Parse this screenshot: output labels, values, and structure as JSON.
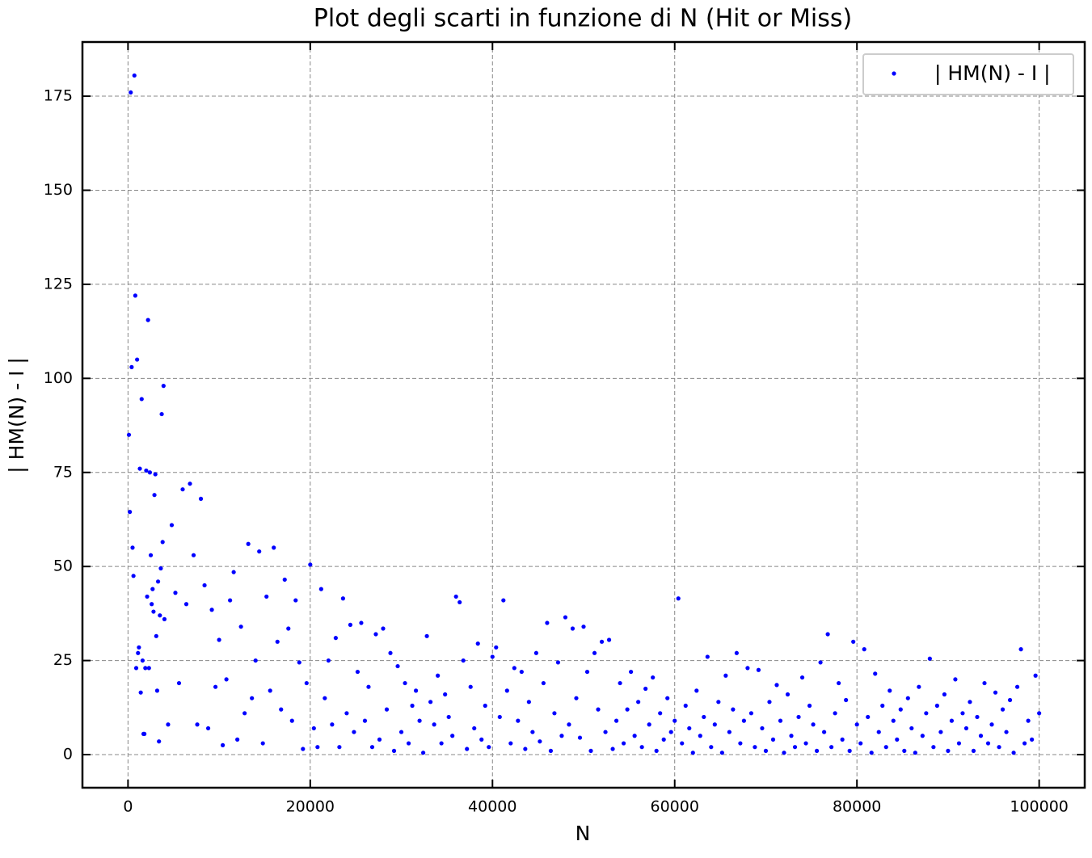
{
  "chart_data": {
    "type": "scatter",
    "title": "Plot degli scarti in funzione di N (Hit or Miss)",
    "xlabel": "N",
    "ylabel": "| HM(N) - I |",
    "xlim": [
      -5000,
      105000
    ],
    "ylim": [
      -8.8,
      189.4
    ],
    "xticks": [
      0,
      20000,
      40000,
      60000,
      80000,
      100000
    ],
    "yticks": [
      0,
      25,
      50,
      75,
      100,
      125,
      150,
      175
    ],
    "grid": true,
    "legend": "upper right",
    "series": [
      {
        "name": "| HM(N) - I |",
        "color": "#0000ff",
        "x": [
          100,
          200,
          300,
          400,
          500,
          600,
          700,
          800,
          900,
          1000,
          1100,
          1200,
          1300,
          1400,
          1500,
          1600,
          1700,
          1800,
          1900,
          2000,
          2100,
          2200,
          2300,
          2400,
          2500,
          2600,
          2700,
          2800,
          2900,
          3000,
          3100,
          3200,
          3300,
          3400,
          3500,
          3600,
          3700,
          3800,
          3900,
          4000,
          4400,
          4800,
          5200,
          5600,
          6000,
          6400,
          6800,
          7200,
          7600,
          8000,
          8400,
          8800,
          9200,
          9600,
          10000,
          10400,
          10800,
          11200,
          11600,
          12000,
          12400,
          12800,
          13200,
          13600,
          14000,
          14400,
          14800,
          15200,
          15600,
          16000,
          16400,
          16800,
          17200,
          17600,
          18000,
          18400,
          18800,
          19200,
          19600,
          20000,
          20400,
          20800,
          21200,
          21600,
          22000,
          22400,
          22800,
          23200,
          23600,
          24000,
          24400,
          24800,
          25200,
          25600,
          26000,
          26400,
          26800,
          27200,
          27600,
          28000,
          28400,
          28800,
          29200,
          29600,
          30000,
          30400,
          30800,
          31200,
          31600,
          32000,
          32400,
          32800,
          33200,
          33600,
          34000,
          34400,
          34800,
          35200,
          35600,
          36000,
          36400,
          36800,
          37200,
          37600,
          38000,
          38400,
          38800,
          39200,
          39600,
          40000,
          40400,
          40800,
          41200,
          41600,
          42000,
          42400,
          42800,
          43200,
          43600,
          44000,
          44400,
          44800,
          45200,
          45600,
          46000,
          46400,
          46800,
          47200,
          47600,
          48000,
          48400,
          48800,
          49200,
          49600,
          50000,
          50400,
          50800,
          51200,
          51600,
          52000,
          52400,
          52800,
          53200,
          53600,
          54000,
          54400,
          54800,
          55200,
          55600,
          56000,
          56400,
          56800,
          57200,
          57600,
          58000,
          58400,
          58800,
          59200,
          59600,
          60000,
          60400,
          60800,
          61200,
          61600,
          62000,
          62400,
          62800,
          63200,
          63600,
          64000,
          64400,
          64800,
          65200,
          65600,
          66000,
          66400,
          66800,
          67200,
          67600,
          68000,
          68400,
          68800,
          69200,
          69600,
          70000,
          70400,
          70800,
          71200,
          71600,
          72000,
          72400,
          72800,
          73200,
          73600,
          74000,
          74400,
          74800,
          75200,
          75600,
          76000,
          76400,
          76800,
          77200,
          77600,
          78000,
          78400,
          78800,
          79200,
          79600,
          80000,
          80400,
          80800,
          81200,
          81600,
          82000,
          82400,
          82800,
          83200,
          83600,
          84000,
          84400,
          84800,
          85200,
          85600,
          86000,
          86400,
          86800,
          87200,
          87600,
          88000,
          88400,
          88800,
          89200,
          89600,
          90000,
          90400,
          90800,
          91200,
          91600,
          92000,
          92400,
          92800,
          93200,
          93600,
          94000,
          94400,
          94800,
          95200,
          95600,
          96000,
          96400,
          96800,
          97200,
          97600,
          98000,
          98400,
          98800,
          99200,
          99600,
          100000
        ],
        "values": [
          85,
          64.5,
          176,
          103,
          55,
          47.5,
          180.5,
          122,
          23,
          105,
          27,
          28.5,
          76,
          16.5,
          94.5,
          25,
          5.5,
          5.5,
          23,
          75.5,
          42,
          115.5,
          23,
          75,
          53,
          40,
          44,
          38,
          69,
          74.5,
          31.5,
          17,
          46,
          3.5,
          37,
          49.5,
          90.5,
          56.5,
          98,
          36,
          8,
          61,
          43,
          19,
          70.5,
          40,
          72,
          53,
          8,
          68,
          45,
          7,
          38.5,
          18,
          30.5,
          2.5,
          20,
          41,
          48.5,
          4,
          34,
          11,
          56,
          15,
          25,
          54,
          3,
          42,
          17,
          55,
          30,
          12,
          46.5,
          33.5,
          9,
          41,
          24.5,
          1.5,
          19,
          50.5,
          7,
          2,
          44,
          15,
          25,
          8,
          31,
          2,
          41.5,
          11,
          34.5,
          6,
          22,
          35,
          9,
          18,
          2,
          32,
          4,
          33.5,
          12,
          27,
          1,
          23.5,
          6,
          19,
          3,
          13,
          17,
          9,
          0.5,
          31.5,
          14,
          8,
          21,
          3,
          16,
          10,
          5,
          42,
          40.5,
          25,
          1.5,
          18,
          7,
          29.5,
          4,
          13,
          2,
          26,
          28.5,
          10,
          41,
          17,
          3,
          23,
          9,
          22,
          1.5,
          14,
          6,
          27,
          3.5,
          19,
          35,
          1,
          11,
          24.5,
          5,
          36.5,
          8,
          33.5,
          15,
          4.5,
          34,
          22,
          1,
          27,
          12,
          30,
          6,
          30.5,
          1.5,
          9,
          19,
          3,
          12,
          22,
          5,
          14,
          2,
          17.5,
          8,
          20.5,
          1,
          11,
          4,
          15,
          6,
          9,
          41.5,
          3,
          13,
          7,
          0.5,
          17,
          5,
          10,
          26,
          2,
          8,
          14,
          0.5,
          21,
          6,
          12,
          27,
          3,
          9,
          23,
          11,
          2,
          22.5,
          7,
          1,
          14,
          4,
          18.5,
          9,
          0.5,
          16,
          5,
          2,
          10,
          20.5,
          3,
          13,
          8,
          1,
          24.5,
          6,
          32,
          2,
          11,
          19,
          4,
          14.5,
          1,
          30,
          8,
          3,
          28,
          10,
          0.5,
          21.5,
          6,
          13,
          2,
          17,
          9,
          4,
          12,
          1,
          15,
          7,
          0.5,
          18,
          5,
          11,
          25.5,
          2,
          13,
          6,
          16,
          1,
          9,
          20,
          3,
          11,
          7,
          14,
          1,
          10,
          5,
          19,
          3,
          8,
          16.5,
          2,
          12,
          6,
          14.5,
          0.5,
          18,
          28,
          3,
          9,
          4,
          21,
          11
        ]
      }
    ]
  }
}
